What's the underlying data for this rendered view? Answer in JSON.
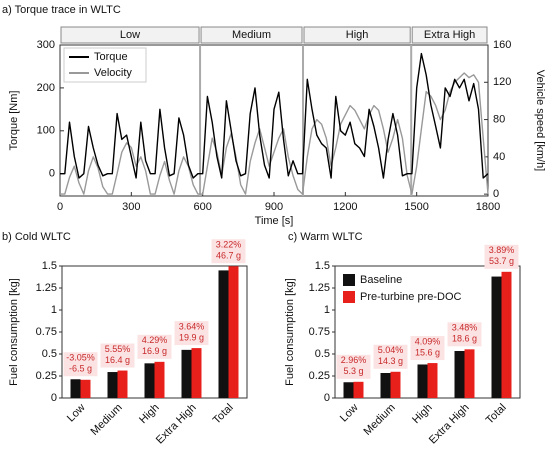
{
  "chart_data": [
    {
      "type": "line",
      "title": "a) Torque trace in WLTC",
      "xlabel": "Time [s]",
      "ylabel": "Torque [Nm]",
      "y2label": "Vehicle speed [km/h]",
      "xlim": [
        0,
        1800
      ],
      "xticks": [
        0,
        300,
        600,
        900,
        1200,
        1500,
        1800
      ],
      "ylim": [
        -52,
        300
      ],
      "yticks": [
        0,
        100,
        200,
        300
      ],
      "y2lim": [
        -2,
        160
      ],
      "y2ticks": [
        0,
        40,
        80,
        120,
        160
      ],
      "legend": "upper left",
      "phases": [
        {
          "name": "Low",
          "start": 0,
          "end": 589
        },
        {
          "name": "Medium",
          "start": 589,
          "end": 1022
        },
        {
          "name": "High",
          "start": 1022,
          "end": 1477
        },
        {
          "name": "Extra High",
          "start": 1477,
          "end": 1800
        }
      ],
      "x": [
        0,
        20,
        40,
        60,
        80,
        100,
        120,
        140,
        160,
        180,
        200,
        220,
        240,
        260,
        280,
        300,
        320,
        340,
        360,
        380,
        400,
        420,
        440,
        460,
        480,
        500,
        520,
        540,
        560,
        580,
        600,
        620,
        640,
        660,
        680,
        700,
        720,
        740,
        760,
        780,
        800,
        820,
        840,
        860,
        880,
        900,
        920,
        940,
        960,
        980,
        1000,
        1020,
        1040,
        1060,
        1080,
        1100,
        1120,
        1140,
        1160,
        1180,
        1200,
        1220,
        1240,
        1260,
        1280,
        1300,
        1320,
        1340,
        1360,
        1380,
        1400,
        1420,
        1440,
        1460,
        1480,
        1500,
        1520,
        1540,
        1560,
        1580,
        1600,
        1620,
        1640,
        1660,
        1680,
        1700,
        1720,
        1740,
        1760,
        1780,
        1800
      ],
      "series": [
        {
          "name": "Torque",
          "color": "#000000",
          "values": [
            0,
            0,
            120,
            40,
            -10,
            0,
            110,
            60,
            20,
            -5,
            0,
            0,
            140,
            80,
            90,
            40,
            -10,
            120,
            30,
            0,
            0,
            150,
            60,
            -5,
            0,
            130,
            90,
            20,
            -10,
            0,
            0,
            180,
            120,
            40,
            -10,
            170,
            100,
            30,
            -5,
            0,
            140,
            200,
            90,
            20,
            -10,
            150,
            190,
            80,
            -5,
            30,
            0,
            0,
            220,
            150,
            90,
            70,
            60,
            -10,
            180,
            100,
            90,
            120,
            70,
            60,
            40,
            150,
            110,
            60,
            -10,
            80,
            140,
            90,
            -5,
            0,
            0,
            200,
            280,
            230,
            160,
            110,
            60,
            200,
            180,
            220,
            200,
            220,
            170,
            210,
            150,
            -10,
            0
          ]
        },
        {
          "name": "Velocity",
          "color": "#999999",
          "axis": "y2",
          "values": [
            0,
            0,
            18,
            30,
            12,
            0,
            25,
            40,
            28,
            8,
            0,
            0,
            22,
            45,
            55,
            50,
            30,
            40,
            25,
            0,
            0,
            20,
            35,
            15,
            0,
            25,
            40,
            30,
            10,
            0,
            0,
            30,
            60,
            45,
            20,
            50,
            65,
            40,
            10,
            0,
            35,
            55,
            70,
            50,
            30,
            45,
            60,
            70,
            40,
            20,
            5,
            0,
            40,
            70,
            80,
            75,
            60,
            30,
            50,
            75,
            85,
            95,
            90,
            80,
            70,
            85,
            95,
            90,
            70,
            45,
            60,
            80,
            60,
            20,
            0,
            30,
            70,
            110,
            105,
            95,
            80,
            90,
            110,
            120,
            125,
            130,
            125,
            128,
            120,
            60,
            0
          ]
        }
      ]
    },
    {
      "type": "bar",
      "title": "b) Cold WLTC",
      "ylabel": "Fuel consumption [kg]",
      "categories": [
        "Low",
        "Medium",
        "High",
        "Extra High",
        "Total"
      ],
      "ylim": [
        0,
        1.5
      ],
      "yticks": [
        0,
        0.25,
        0.5,
        0.75,
        1,
        1.25,
        1.5
      ],
      "annotation_color": "#c8282a",
      "series": [
        {
          "color": "#111111",
          "values": [
            0.213,
            0.295,
            0.394,
            0.547,
            1.45
          ]
        },
        {
          "color": "#e8201c",
          "values": [
            0.207,
            0.312,
            0.411,
            0.567,
            1.497
          ]
        }
      ],
      "annotations": [
        [
          "-3.05%",
          "-6.5 g"
        ],
        [
          "5.55%",
          "16.4 g"
        ],
        [
          "4.29%",
          "16.9 g"
        ],
        [
          "3.64%",
          "19.9 g"
        ],
        [
          "3.22%",
          "46.7 g"
        ]
      ]
    },
    {
      "type": "bar",
      "title": "c) Warm WLTC",
      "ylabel": "Fuel consumption [kg]",
      "categories": [
        "Low",
        "Medium",
        "High",
        "Extra High",
        "Total"
      ],
      "ylim": [
        0,
        1.5
      ],
      "yticks": [
        0,
        0.25,
        0.5,
        0.75,
        1,
        1.25,
        1.5
      ],
      "legend": "upper left",
      "annotation_color": "#c8282a",
      "series": [
        {
          "name": "Baseline",
          "color": "#111111",
          "values": [
            0.179,
            0.284,
            0.381,
            0.534,
            1.38
          ]
        },
        {
          "name": "Pre-turbine pre-DOC",
          "color": "#e8201c",
          "values": [
            0.184,
            0.298,
            0.397,
            0.553,
            1.434
          ]
        }
      ],
      "annotations": [
        [
          "2.96%",
          "5.3 g"
        ],
        [
          "5.04%",
          "14.3 g"
        ],
        [
          "4.09%",
          "15.6 g"
        ],
        [
          "3.48%",
          "18.6 g"
        ],
        [
          "3.89%",
          "53.7 g"
        ]
      ]
    }
  ]
}
